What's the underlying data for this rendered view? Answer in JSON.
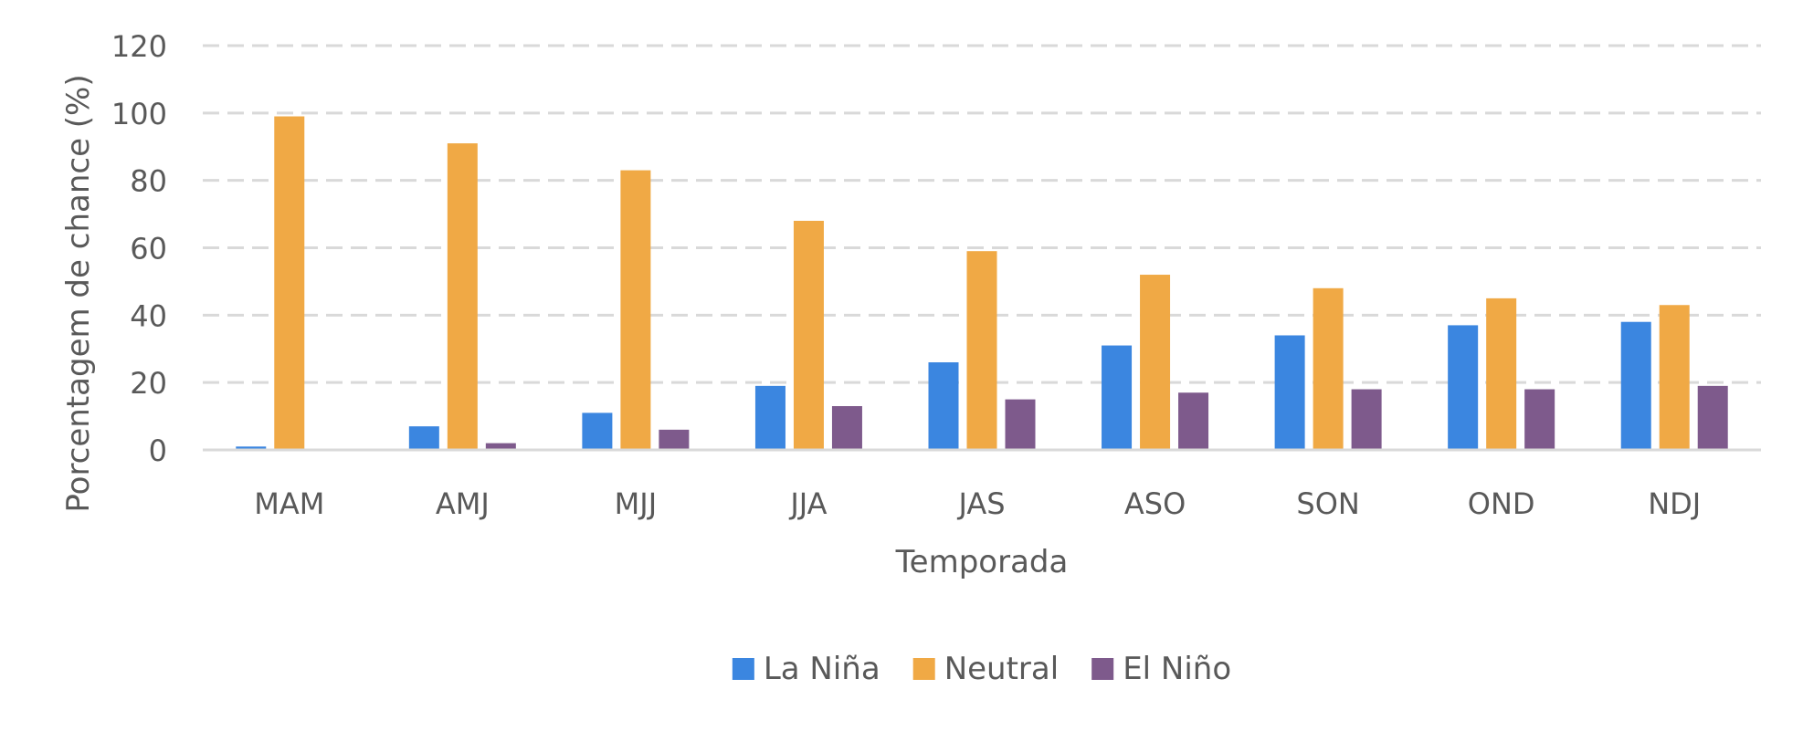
{
  "chart_data": {
    "type": "bar",
    "categories": [
      "MAM",
      "AMJ",
      "MJJ",
      "JJA",
      "JAS",
      "ASO",
      "SON",
      "OND",
      "NDJ"
    ],
    "series": [
      {
        "name": "La Niña",
        "color": "#3b86e0",
        "values": [
          1,
          7,
          11,
          19,
          26,
          31,
          34,
          37,
          38
        ]
      },
      {
        "name": "Neutral",
        "color": "#f0a945",
        "values": [
          99,
          91,
          83,
          68,
          59,
          52,
          48,
          45,
          43
        ]
      },
      {
        "name": "El Niño",
        "color": "#7e5a8c",
        "values": [
          0,
          2,
          6,
          13,
          15,
          17,
          18,
          18,
          19
        ]
      }
    ],
    "title": "",
    "xlabel": "Temporada",
    "ylabel": "Porcentagem de chance (%)",
    "ylim": [
      0,
      120
    ],
    "yticks": [
      "0",
      "20",
      "40",
      "60",
      "80",
      "100",
      "120"
    ],
    "grid": true,
    "grid_style": "dashed",
    "legend_position": "bottom-center"
  }
}
